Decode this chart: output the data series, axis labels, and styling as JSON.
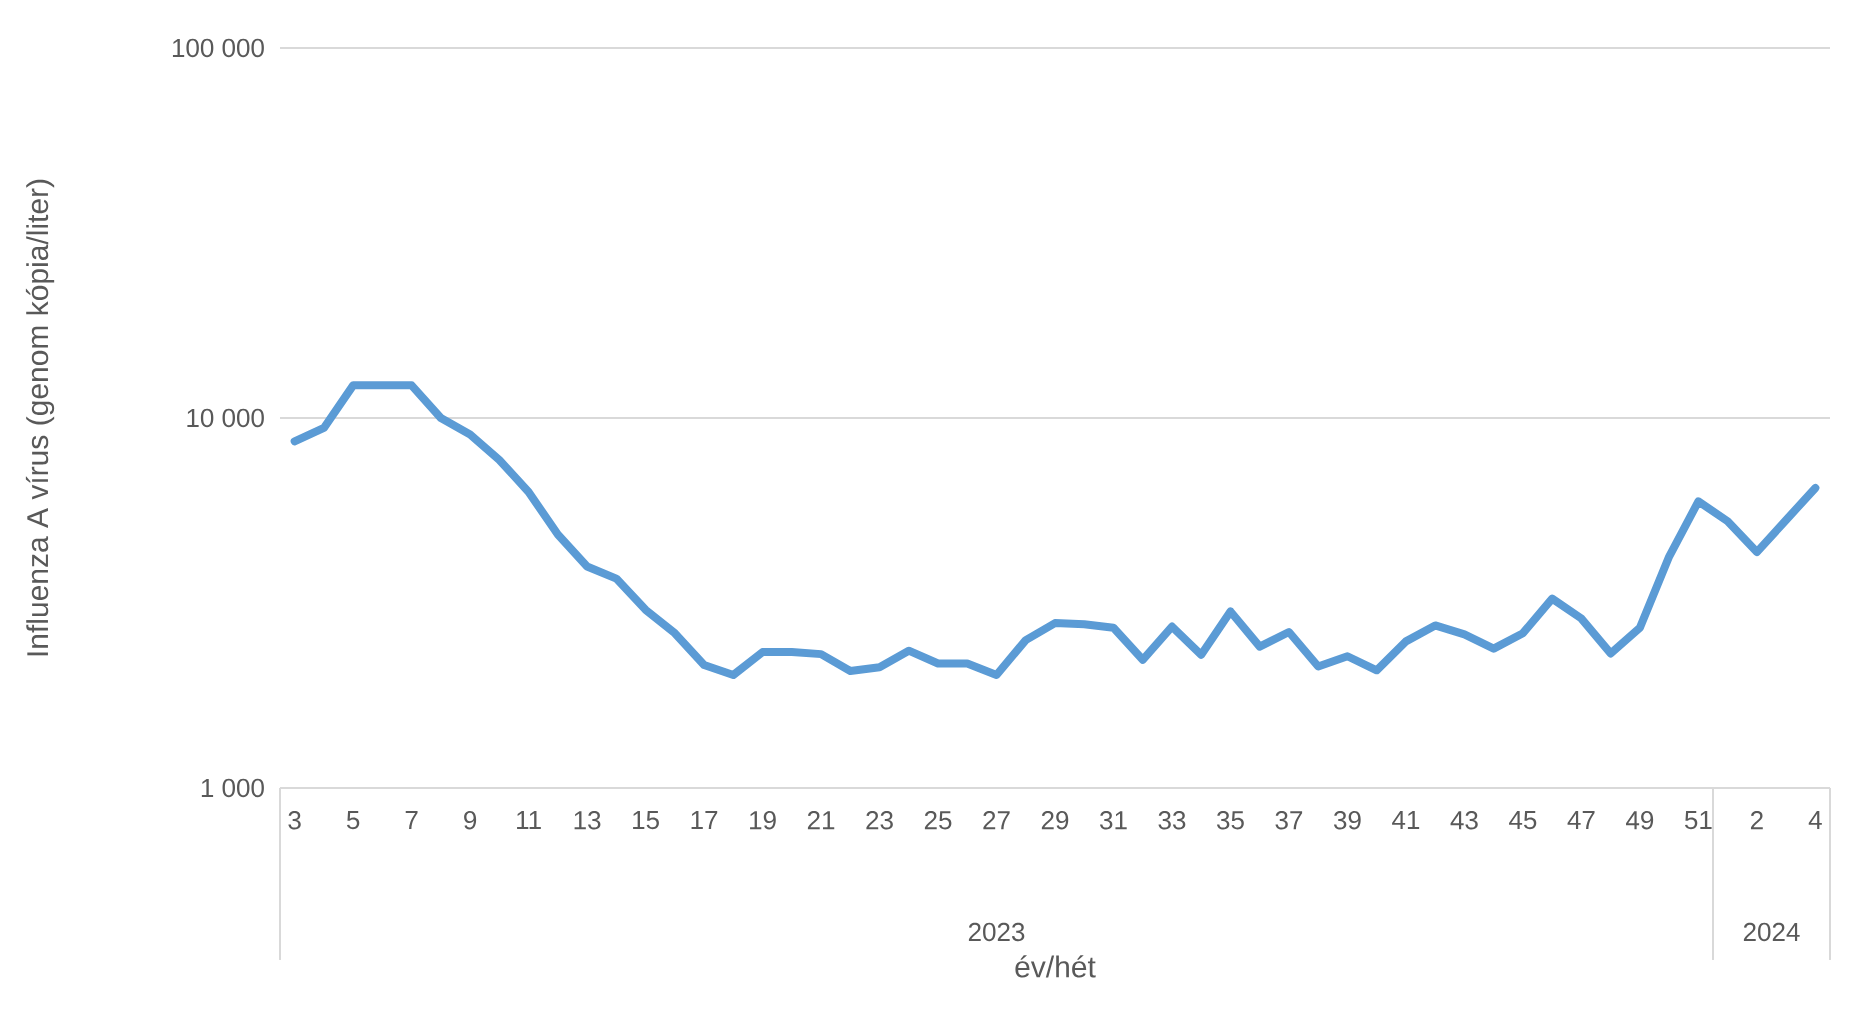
{
  "chart_data": {
    "type": "line",
    "xlabel": "év/hét",
    "ylabel": "Influenza A vírus (genom kópia/liter)",
    "categories": [
      "3",
      null,
      "5",
      null,
      "7",
      null,
      "9",
      null,
      "11",
      null,
      "13",
      null,
      "15",
      null,
      "17",
      null,
      "19",
      null,
      "21",
      null,
      "23",
      null,
      "25",
      null,
      "27",
      null,
      "29",
      null,
      "31",
      null,
      "33",
      null,
      "35",
      null,
      "37",
      null,
      "39",
      null,
      "41",
      null,
      "43",
      null,
      "45",
      null,
      "47",
      null,
      "49",
      null,
      "51",
      null,
      "2",
      null,
      "4"
    ],
    "series": [
      {
        "color": "#5b9bd5",
        "values": [
          8650,
          9400,
          12250,
          12250,
          12250,
          10000,
          9020,
          7700,
          6310,
          4840,
          3970,
          3680,
          3030,
          2620,
          2150,
          2020,
          2330,
          2330,
          2300,
          2070,
          2120,
          2350,
          2170,
          2170,
          2020,
          2510,
          2790,
          2770,
          2710,
          2220,
          2730,
          2290,
          3000,
          2410,
          2640,
          2130,
          2270,
          2080,
          2490,
          2750,
          2600,
          2380,
          2620,
          3250,
          2870,
          2310,
          2710,
          4220,
          5950,
          5260,
          4340,
          5300,
          6470
        ]
      }
    ],
    "log": true,
    "ylim": [
      1000,
      100000
    ],
    "yticks": [
      {
        "value": 1000,
        "label": "1 000"
      },
      {
        "value": 10000,
        "label": "10 000"
      },
      {
        "value": 100000,
        "label": "100 000"
      }
    ],
    "grid": "y",
    "marker": "none",
    "line_style": "solid",
    "annotations": [
      "2023",
      "2024"
    ]
  }
}
